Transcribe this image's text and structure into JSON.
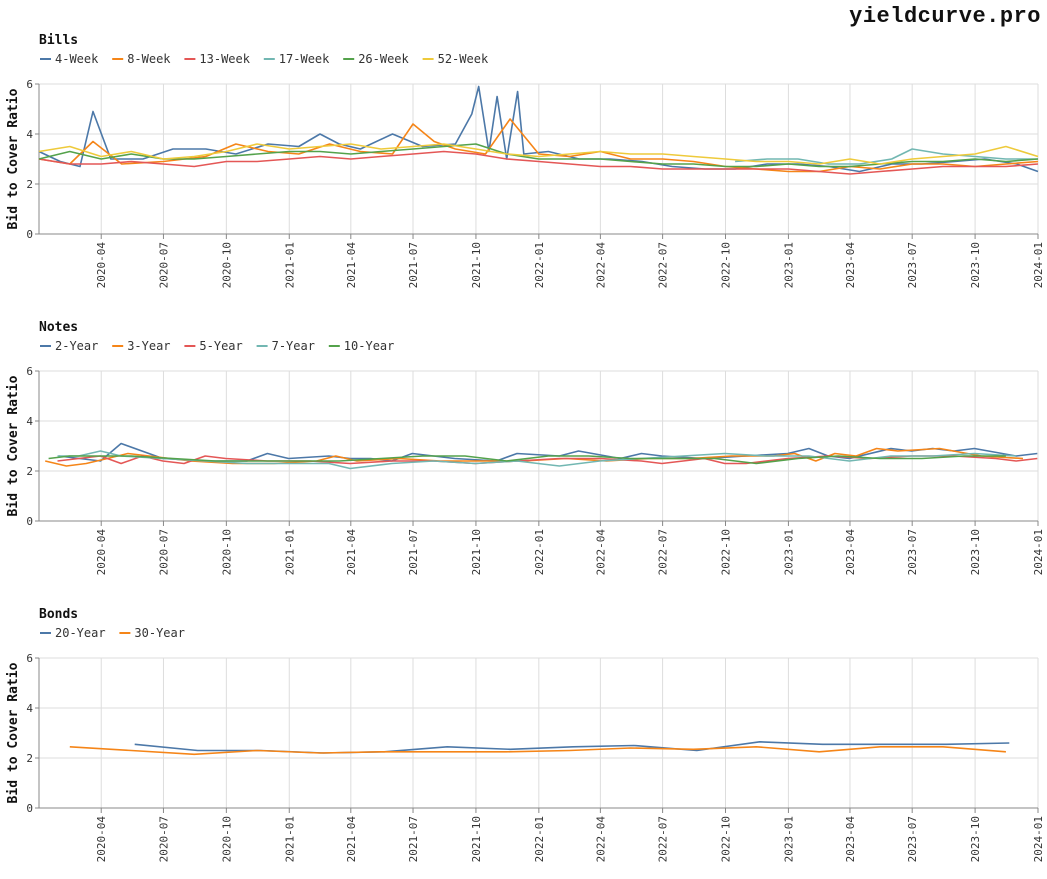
{
  "brand": "yieldcurve.pro",
  "colors": {
    "blue": "#4c78a8",
    "orange": "#f58518",
    "red": "#e45756",
    "teal": "#72b7b2",
    "green": "#54a24b",
    "yellow": "#eeca3b",
    "grid": "#dddddd",
    "axis": "#888888"
  },
  "chart_data": [
    {
      "type": "line",
      "title": "Bills",
      "ylabel": "Bid to Cover Ratio",
      "xlabel": "",
      "ylim": [
        0,
        6
      ],
      "yticks": [
        0,
        2,
        4,
        6
      ],
      "xlim": [
        "2020-01-01",
        "2024-01-01"
      ],
      "xticks": [
        "2020-04",
        "2020-07",
        "2020-10",
        "2021-01",
        "2021-04",
        "2021-07",
        "2021-10",
        "2022-01",
        "2022-04",
        "2022-07",
        "2022-10",
        "2023-01",
        "2023-04",
        "2023-07",
        "2023-10",
        "2024-01"
      ],
      "grid": true,
      "legend_position": "top-left",
      "series": [
        {
          "name": "4-Week",
          "color": "#4c78a8",
          "x": [
            "2020-01-01",
            "2020-02-01",
            "2020-03-01",
            "2020-03-20",
            "2020-04-15",
            "2020-06-01",
            "2020-07-15",
            "2020-09-01",
            "2020-10-15",
            "2020-12-01",
            "2021-01-15",
            "2021-02-15",
            "2021-03-15",
            "2021-04-15",
            "2021-06-01",
            "2021-07-15",
            "2021-09-01",
            "2021-09-25",
            "2021-10-05",
            "2021-10-20",
            "2021-11-01",
            "2021-11-15",
            "2021-12-01",
            "2021-12-10",
            "2022-01-15",
            "2022-03-01",
            "2022-04-15",
            "2022-06-01",
            "2022-07-15",
            "2022-09-01",
            "2022-10-15",
            "2022-12-01",
            "2023-01-15",
            "2023-03-01",
            "2023-04-15",
            "2023-06-01",
            "2023-07-15",
            "2023-09-01",
            "2023-10-15",
            "2023-12-01",
            "2024-01-01"
          ],
          "y": [
            3.3,
            2.9,
            2.7,
            4.9,
            3.0,
            3.0,
            3.4,
            3.4,
            3.2,
            3.6,
            3.5,
            4.0,
            3.6,
            3.4,
            4.0,
            3.5,
            3.6,
            4.8,
            5.9,
            3.3,
            5.5,
            3.0,
            5.7,
            3.2,
            3.3,
            3.0,
            3.0,
            2.9,
            2.7,
            2.6,
            2.6,
            2.8,
            2.8,
            2.7,
            2.5,
            2.8,
            2.8,
            2.9,
            3.0,
            2.8,
            2.5
          ]
        },
        {
          "name": "8-Week",
          "color": "#f58518",
          "x": [
            "2020-01-01",
            "2020-02-15",
            "2020-03-20",
            "2020-05-01",
            "2020-07-01",
            "2020-09-01",
            "2020-10-15",
            "2020-12-01",
            "2021-01-15",
            "2021-03-01",
            "2021-04-15",
            "2021-06-01",
            "2021-07-01",
            "2021-08-01",
            "2021-09-01",
            "2021-10-15",
            "2021-11-20",
            "2022-01-01",
            "2022-02-15",
            "2022-04-01",
            "2022-05-15",
            "2022-07-01",
            "2022-08-15",
            "2022-10-01",
            "2022-11-15",
            "2023-01-01",
            "2023-02-15",
            "2023-04-01",
            "2023-05-15",
            "2023-07-01",
            "2023-08-15",
            "2023-10-01",
            "2023-11-15",
            "2024-01-01"
          ],
          "y": [
            3.0,
            2.8,
            3.7,
            2.8,
            2.9,
            3.1,
            3.6,
            3.3,
            3.2,
            3.6,
            3.3,
            3.2,
            4.4,
            3.7,
            3.4,
            3.2,
            4.6,
            3.2,
            3.1,
            3.3,
            3.0,
            3.0,
            2.9,
            2.7,
            2.6,
            2.5,
            2.5,
            2.7,
            2.6,
            2.8,
            2.8,
            2.7,
            2.8,
            2.9
          ]
        },
        {
          "name": "13-Week",
          "color": "#e45756",
          "x": [
            "2020-01-01",
            "2020-02-15",
            "2020-04-01",
            "2020-05-15",
            "2020-07-01",
            "2020-08-15",
            "2020-10-01",
            "2020-11-15",
            "2021-01-01",
            "2021-02-15",
            "2021-04-01",
            "2021-05-15",
            "2021-07-01",
            "2021-08-15",
            "2021-10-01",
            "2021-11-15",
            "2022-01-01",
            "2022-02-15",
            "2022-04-01",
            "2022-05-15",
            "2022-07-01",
            "2022-08-15",
            "2022-10-01",
            "2022-11-15",
            "2023-01-01",
            "2023-02-15",
            "2023-04-01",
            "2023-05-15",
            "2023-07-01",
            "2023-08-15",
            "2023-10-01",
            "2023-11-15",
            "2024-01-01"
          ],
          "y": [
            3.0,
            2.8,
            2.8,
            2.9,
            2.8,
            2.7,
            2.9,
            2.9,
            3.0,
            3.1,
            3.0,
            3.1,
            3.2,
            3.3,
            3.2,
            3.0,
            2.9,
            2.8,
            2.7,
            2.7,
            2.6,
            2.6,
            2.6,
            2.6,
            2.6,
            2.5,
            2.4,
            2.5,
            2.6,
            2.7,
            2.7,
            2.7,
            2.8
          ]
        },
        {
          "name": "17-Week",
          "color": "#72b7b2",
          "x": [
            "2022-10-15",
            "2022-12-01",
            "2023-01-15",
            "2023-03-01",
            "2023-04-15",
            "2023-06-01",
            "2023-07-01",
            "2023-08-15",
            "2023-10-01",
            "2023-11-15",
            "2024-01-01"
          ],
          "y": [
            2.9,
            3.0,
            3.0,
            2.8,
            2.8,
            3.0,
            3.4,
            3.2,
            3.1,
            3.0,
            3.0
          ]
        },
        {
          "name": "26-Week",
          "color": "#54a24b",
          "x": [
            "2020-01-01",
            "2020-02-15",
            "2020-04-01",
            "2020-05-15",
            "2020-07-01",
            "2020-08-15",
            "2020-10-01",
            "2020-11-15",
            "2021-01-01",
            "2021-02-15",
            "2021-04-01",
            "2021-05-15",
            "2021-07-01",
            "2021-08-15",
            "2021-10-01",
            "2021-11-15",
            "2022-01-01",
            "2022-02-15",
            "2022-04-01",
            "2022-05-15",
            "2022-07-01",
            "2022-08-15",
            "2022-10-01",
            "2022-11-15",
            "2023-01-01",
            "2023-02-15",
            "2023-04-01",
            "2023-05-15",
            "2023-07-01",
            "2023-08-15",
            "2023-10-01",
            "2023-11-15",
            "2024-01-01"
          ],
          "y": [
            3.0,
            3.3,
            3.0,
            3.2,
            3.0,
            3.0,
            3.1,
            3.2,
            3.3,
            3.3,
            3.2,
            3.3,
            3.4,
            3.5,
            3.6,
            3.2,
            3.0,
            3.0,
            3.0,
            2.9,
            2.8,
            2.8,
            2.7,
            2.7,
            2.8,
            2.7,
            2.7,
            2.8,
            2.9,
            2.9,
            3.0,
            2.9,
            3.0
          ]
        },
        {
          "name": "52-Week",
          "color": "#eeca3b",
          "x": [
            "2020-01-01",
            "2020-02-15",
            "2020-04-01",
            "2020-05-15",
            "2020-07-01",
            "2020-08-15",
            "2020-10-01",
            "2020-11-15",
            "2021-01-01",
            "2021-02-15",
            "2021-04-01",
            "2021-05-15",
            "2021-07-01",
            "2021-08-15",
            "2021-10-01",
            "2021-11-15",
            "2022-01-01",
            "2022-02-15",
            "2022-04-01",
            "2022-05-15",
            "2022-07-01",
            "2022-08-15",
            "2022-10-01",
            "2022-11-15",
            "2023-01-01",
            "2023-02-15",
            "2023-04-01",
            "2023-05-15",
            "2023-07-01",
            "2023-08-15",
            "2023-10-01",
            "2023-11-15",
            "2024-01-01"
          ],
          "y": [
            3.3,
            3.5,
            3.1,
            3.3,
            3.0,
            3.1,
            3.3,
            3.6,
            3.4,
            3.5,
            3.6,
            3.4,
            3.5,
            3.6,
            3.4,
            3.2,
            3.1,
            3.2,
            3.3,
            3.2,
            3.2,
            3.1,
            3.0,
            2.9,
            2.9,
            2.8,
            3.0,
            2.8,
            3.0,
            3.1,
            3.2,
            3.5,
            3.1
          ]
        }
      ]
    },
    {
      "type": "line",
      "title": "Notes",
      "ylabel": "Bid to Cover Ratio",
      "xlabel": "",
      "ylim": [
        0,
        6
      ],
      "yticks": [
        0,
        2,
        4,
        6
      ],
      "xlim": [
        "2020-01-01",
        "2024-01-01"
      ],
      "xticks": [
        "2020-04",
        "2020-07",
        "2020-10",
        "2021-01",
        "2021-04",
        "2021-07",
        "2021-10",
        "2022-01",
        "2022-04",
        "2022-07",
        "2022-10",
        "2023-01",
        "2023-04",
        "2023-07",
        "2023-10",
        "2024-01"
      ],
      "grid": true,
      "legend_position": "top-left",
      "series": [
        {
          "name": "2-Year",
          "color": "#4c78a8",
          "x": [
            "2020-01-30",
            "2020-03-31",
            "2020-04-30",
            "2020-06-30",
            "2020-08-31",
            "2020-10-31",
            "2020-11-30",
            "2020-12-31",
            "2021-02-28",
            "2021-03-31",
            "2021-04-30",
            "2021-05-31",
            "2021-06-30",
            "2021-08-31",
            "2021-10-31",
            "2021-11-30",
            "2022-01-31",
            "2022-02-28",
            "2022-04-30",
            "2022-05-31",
            "2022-06-30",
            "2022-08-31",
            "2022-10-31",
            "2022-12-31",
            "2023-01-31",
            "2023-02-28",
            "2023-03-31",
            "2023-05-31",
            "2023-06-30",
            "2023-07-31",
            "2023-08-31",
            "2023-09-30",
            "2023-11-30",
            "2023-12-31"
          ],
          "y": [
            2.6,
            2.4,
            3.1,
            2.5,
            2.4,
            2.4,
            2.7,
            2.5,
            2.6,
            2.5,
            2.5,
            2.4,
            2.7,
            2.5,
            2.4,
            2.7,
            2.6,
            2.8,
            2.5,
            2.7,
            2.6,
            2.5,
            2.6,
            2.7,
            2.9,
            2.6,
            2.5,
            2.9,
            2.8,
            2.9,
            2.8,
            2.9,
            2.6,
            2.7
          ]
        },
        {
          "name": "3-Year",
          "color": "#f58518",
          "x": [
            "2020-01-10",
            "2020-02-10",
            "2020-03-10",
            "2020-04-10",
            "2020-05-10",
            "2020-06-10",
            "2020-08-10",
            "2020-10-10",
            "2020-12-10",
            "2021-02-10",
            "2021-03-10",
            "2021-04-10",
            "2021-06-10",
            "2021-08-10",
            "2021-10-10",
            "2021-12-10",
            "2022-02-10",
            "2022-04-10",
            "2022-06-10",
            "2022-08-10",
            "2022-10-10",
            "2022-12-10",
            "2023-01-10",
            "2023-02-10",
            "2023-03-10",
            "2023-04-10",
            "2023-05-10",
            "2023-06-10",
            "2023-08-10",
            "2023-10-10",
            "2023-12-10"
          ],
          "y": [
            2.4,
            2.2,
            2.3,
            2.5,
            2.7,
            2.6,
            2.4,
            2.3,
            2.3,
            2.4,
            2.6,
            2.4,
            2.5,
            2.4,
            2.4,
            2.4,
            2.5,
            2.4,
            2.5,
            2.5,
            2.6,
            2.6,
            2.7,
            2.4,
            2.7,
            2.6,
            2.9,
            2.8,
            2.9,
            2.6,
            2.5
          ]
        },
        {
          "name": "5-Year",
          "color": "#e45756",
          "x": [
            "2020-01-28",
            "2020-02-28",
            "2020-03-31",
            "2020-04-30",
            "2020-05-31",
            "2020-06-30",
            "2020-07-31",
            "2020-08-31",
            "2020-09-30",
            "2020-11-30",
            "2021-01-31",
            "2021-03-31",
            "2021-05-31",
            "2021-07-31",
            "2021-09-30",
            "2021-11-30",
            "2022-01-31",
            "2022-03-31",
            "2022-05-31",
            "2022-06-30",
            "2022-08-31",
            "2022-09-30",
            "2022-10-31",
            "2022-12-31",
            "2023-02-28",
            "2023-04-30",
            "2023-06-30",
            "2023-08-31",
            "2023-10-31",
            "2023-11-30",
            "2023-12-31"
          ],
          "y": [
            2.4,
            2.5,
            2.6,
            2.3,
            2.6,
            2.4,
            2.3,
            2.6,
            2.5,
            2.4,
            2.4,
            2.3,
            2.4,
            2.4,
            2.3,
            2.4,
            2.5,
            2.5,
            2.4,
            2.3,
            2.5,
            2.3,
            2.3,
            2.5,
            2.6,
            2.5,
            2.6,
            2.6,
            2.5,
            2.4,
            2.5
          ]
        },
        {
          "name": "7-Year",
          "color": "#72b7b2",
          "x": [
            "2020-01-28",
            "2020-02-28",
            "2020-03-31",
            "2020-04-30",
            "2020-06-30",
            "2020-08-31",
            "2020-10-31",
            "2020-12-31",
            "2021-02-28",
            "2021-03-31",
            "2021-05-31",
            "2021-07-31",
            "2021-09-30",
            "2021-11-30",
            "2022-01-31",
            "2022-03-31",
            "2022-05-31",
            "2022-07-31",
            "2022-09-30",
            "2022-11-30",
            "2023-01-31",
            "2023-03-31",
            "2023-05-31",
            "2023-07-31",
            "2023-09-30",
            "2023-11-30"
          ],
          "y": [
            2.6,
            2.6,
            2.8,
            2.6,
            2.5,
            2.4,
            2.3,
            2.3,
            2.3,
            2.1,
            2.3,
            2.4,
            2.3,
            2.4,
            2.2,
            2.4,
            2.5,
            2.6,
            2.7,
            2.6,
            2.6,
            2.4,
            2.6,
            2.6,
            2.7,
            2.6
          ]
        },
        {
          "name": "10-Year",
          "color": "#54a24b",
          "x": [
            "2020-01-15",
            "2020-02-15",
            "2020-03-15",
            "2020-05-15",
            "2020-07-15",
            "2020-09-15",
            "2020-11-15",
            "2021-01-15",
            "2021-03-15",
            "2021-05-15",
            "2021-07-15",
            "2021-09-15",
            "2021-11-15",
            "2022-01-15",
            "2022-03-15",
            "2022-05-15",
            "2022-07-15",
            "2022-09-15",
            "2022-11-15",
            "2023-01-15",
            "2023-03-15",
            "2023-05-15",
            "2023-07-15",
            "2023-09-15",
            "2023-11-15"
          ],
          "y": [
            2.5,
            2.6,
            2.6,
            2.6,
            2.5,
            2.4,
            2.4,
            2.4,
            2.4,
            2.5,
            2.6,
            2.6,
            2.4,
            2.6,
            2.6,
            2.5,
            2.5,
            2.5,
            2.3,
            2.5,
            2.6,
            2.5,
            2.5,
            2.6,
            2.6
          ]
        }
      ]
    },
    {
      "type": "line",
      "title": "Bonds",
      "ylabel": "Bid to Cover Ratio",
      "xlabel": "",
      "ylim": [
        0,
        6
      ],
      "yticks": [
        0,
        2,
        4,
        6
      ],
      "xlim": [
        "2020-01-01",
        "2024-01-01"
      ],
      "xticks": [
        "2020-04",
        "2020-07",
        "2020-10",
        "2021-01",
        "2021-04",
        "2021-07",
        "2021-10",
        "2022-01",
        "2022-04",
        "2022-07",
        "2022-10",
        "2023-01",
        "2023-04",
        "2023-07",
        "2023-10",
        "2024-01"
      ],
      "grid": true,
      "legend_position": "top-left",
      "series": [
        {
          "name": "20-Year",
          "color": "#4c78a8",
          "x": [
            "2020-05-20",
            "2020-08-20",
            "2020-11-20",
            "2021-02-20",
            "2021-05-20",
            "2021-08-20",
            "2021-11-20",
            "2022-02-20",
            "2022-05-20",
            "2022-08-20",
            "2022-11-20",
            "2023-02-20",
            "2023-05-20",
            "2023-08-20",
            "2023-11-20"
          ],
          "y": [
            2.55,
            2.3,
            2.3,
            2.2,
            2.25,
            2.45,
            2.35,
            2.45,
            2.5,
            2.3,
            2.65,
            2.55,
            2.55,
            2.55,
            2.6
          ]
        },
        {
          "name": "30-Year",
          "color": "#f58518",
          "x": [
            "2020-02-15",
            "2020-05-15",
            "2020-08-15",
            "2020-11-15",
            "2021-02-15",
            "2021-05-15",
            "2021-08-15",
            "2021-11-15",
            "2022-02-15",
            "2022-05-15",
            "2022-08-15",
            "2022-11-15",
            "2023-02-15",
            "2023-05-15",
            "2023-08-15",
            "2023-11-15"
          ],
          "y": [
            2.45,
            2.3,
            2.15,
            2.3,
            2.2,
            2.25,
            2.25,
            2.25,
            2.3,
            2.4,
            2.35,
            2.45,
            2.25,
            2.45,
            2.45,
            2.25
          ]
        }
      ]
    }
  ]
}
